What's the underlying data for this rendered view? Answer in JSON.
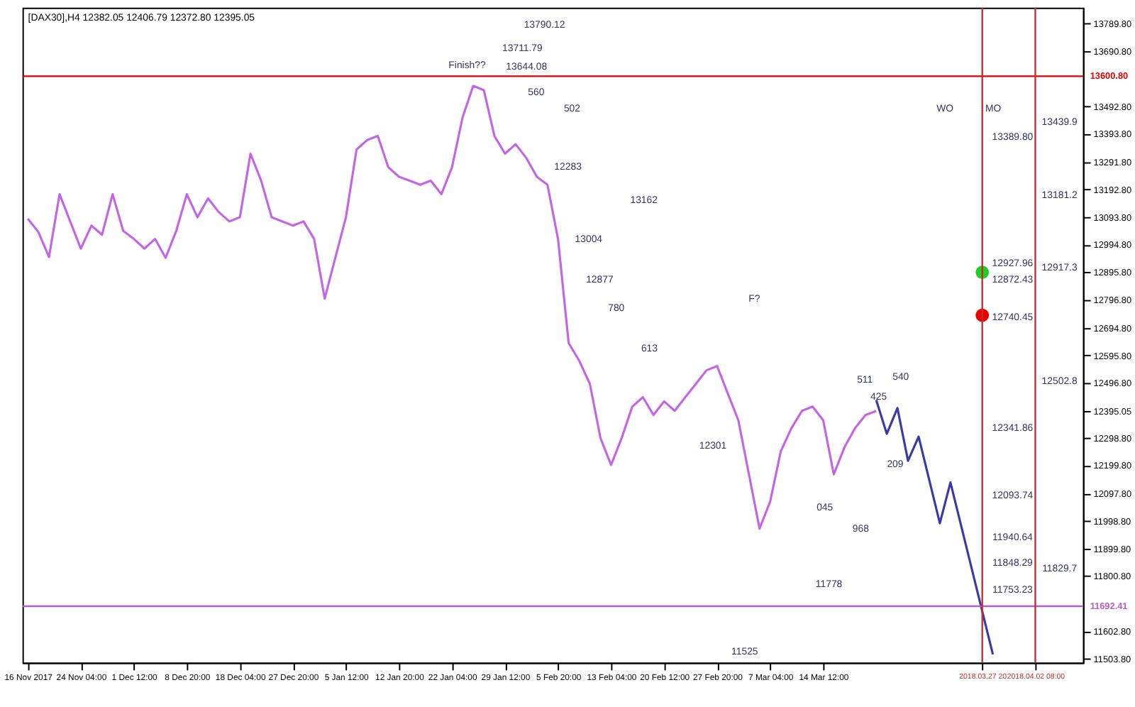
{
  "chart_data": {
    "type": "line",
    "title": "[DAX30],H4 12382.05 12406.79 12372.80 12395.05",
    "categories": [
      "16 Nov 2017",
      null,
      null,
      null,
      null,
      "24 Nov 04:00",
      null,
      null,
      null,
      null,
      "1 Dec 12:00",
      null,
      null,
      null,
      null,
      "8 Dec 20:00",
      null,
      null,
      null,
      null,
      "18 Dec 04:00",
      null,
      null,
      null,
      null,
      "27 Dec 20:00",
      null,
      null,
      null,
      null,
      "5 Jan 12:00",
      null,
      null,
      null,
      null,
      "12 Jan 20:00",
      null,
      null,
      null,
      null,
      "22 Jan 04:00",
      null,
      null,
      null,
      null,
      "29 Jan 12:00",
      null,
      null,
      null,
      null,
      "5 Feb 20:00",
      null,
      null,
      null,
      null,
      "13 Feb 04:00",
      null,
      null,
      null,
      null,
      "20 Feb 12:00",
      null,
      null,
      null,
      null,
      "27 Feb 20:00",
      null,
      null,
      null,
      null,
      "7 Mar 04:00",
      null,
      null,
      null,
      null,
      "14 Mar 12:00",
      null,
      null,
      null,
      null,
      null,
      null,
      null,
      null,
      null,
      null,
      null,
      null,
      null,
      null,
      "2018.03.27 20",
      null,
      null,
      null,
      null,
      "2018.04.02 08:00",
      null,
      null,
      null,
      null
    ],
    "series": [
      {
        "color": "#c266e6",
        "values": [
          13088,
          13040,
          12950,
          13176,
          13078,
          12980,
          13063,
          13030,
          13176,
          13044,
          13015,
          12980,
          13015,
          12947,
          13044,
          13176,
          13093,
          13161,
          13112,
          13078,
          13093,
          13322,
          13225,
          13093,
          13078,
          13063,
          13078,
          13015,
          12800,
          12947,
          13093,
          13337,
          13371,
          13386,
          13273,
          13239,
          13225,
          13210,
          13225,
          13176,
          13273,
          13453,
          13566,
          13551,
          13386,
          13322,
          13356,
          13307,
          13239,
          13210,
          13015,
          12640,
          12576,
          12493,
          12298,
          12201,
          12298,
          12411,
          12445,
          12381,
          12430,
          12396,
          12445,
          12493,
          12542,
          12557,
          12459,
          12362,
          12167,
          11972,
          12069,
          12250,
          12333,
          12396,
          12411,
          12362,
          12167,
          12264,
          12333,
          12381,
          12395,
          null,
          null,
          null,
          null,
          null,
          null,
          null,
          null,
          null,
          null,
          null,
          null,
          null,
          null,
          null,
          null,
          null,
          null,
          null
        ]
      },
      {
        "color": "#3a3aa8",
        "values": [
          null,
          null,
          null,
          null,
          null,
          null,
          null,
          null,
          null,
          null,
          null,
          null,
          null,
          null,
          null,
          null,
          null,
          null,
          null,
          null,
          null,
          null,
          null,
          null,
          null,
          null,
          null,
          null,
          null,
          null,
          null,
          null,
          null,
          null,
          null,
          null,
          null,
          null,
          null,
          null,
          null,
          null,
          null,
          null,
          null,
          null,
          null,
          null,
          null,
          null,
          null,
          null,
          null,
          null,
          null,
          null,
          null,
          null,
          null,
          null,
          null,
          null,
          null,
          null,
          null,
          null,
          null,
          null,
          null,
          null,
          null,
          null,
          null,
          null,
          null,
          null,
          null,
          null,
          null,
          null,
          12435,
          12313,
          12406,
          12216,
          12303,
          null,
          11991,
          12138,
          null,
          null,
          null,
          11519,
          null,
          null,
          null,
          null,
          null,
          null,
          null,
          null
        ]
      },
      {
        "type": "scatter",
        "color": "#22cc22",
        "values": [
          null,
          null,
          null,
          null,
          null,
          null,
          null,
          null,
          null,
          null,
          null,
          null,
          null,
          null,
          null,
          null,
          null,
          null,
          null,
          null,
          null,
          null,
          null,
          null,
          null,
          null,
          null,
          null,
          null,
          null,
          null,
          null,
          null,
          null,
          null,
          null,
          null,
          null,
          null,
          null,
          null,
          null,
          null,
          null,
          null,
          null,
          null,
          null,
          null,
          null,
          null,
          null,
          null,
          null,
          null,
          null,
          null,
          null,
          null,
          null,
          null,
          null,
          null,
          null,
          null,
          null,
          null,
          null,
          null,
          null,
          null,
          null,
          null,
          null,
          null,
          null,
          null,
          null,
          null,
          null,
          null,
          null,
          null,
          null,
          null,
          null,
          null,
          null,
          null,
          null,
          12895,
          null,
          null,
          null,
          null,
          null,
          null,
          null,
          null,
          null
        ]
      },
      {
        "type": "scatter",
        "color": "#ee0000",
        "values": [
          null,
          null,
          null,
          null,
          null,
          null,
          null,
          null,
          null,
          null,
          null,
          null,
          null,
          null,
          null,
          null,
          null,
          null,
          null,
          null,
          null,
          null,
          null,
          null,
          null,
          null,
          null,
          null,
          null,
          null,
          null,
          null,
          null,
          null,
          null,
          null,
          null,
          null,
          null,
          null,
          null,
          null,
          null,
          null,
          null,
          null,
          null,
          null,
          null,
          null,
          null,
          null,
          null,
          null,
          null,
          null,
          null,
          null,
          null,
          null,
          null,
          null,
          null,
          null,
          null,
          null,
          null,
          null,
          null,
          null,
          null,
          null,
          null,
          null,
          null,
          null,
          null,
          null,
          null,
          null,
          null,
          null,
          null,
          null,
          null,
          null,
          null,
          null,
          null,
          null,
          12740,
          null,
          null,
          null,
          null,
          null,
          null,
          null,
          null,
          null
        ]
      }
    ],
    "ylim": [
      11489,
      13848
    ],
    "yticks": [
      {
        "value": 13789.8,
        "label": "13789.80"
      },
      {
        "value": 13690.8,
        "label": "13690.80"
      },
      {
        "value": 13492.8,
        "label": "13492.80"
      },
      {
        "value": 13393.8,
        "label": "13393.80"
      },
      {
        "value": 13291.8,
        "label": "13291.80"
      },
      {
        "value": 13192.8,
        "label": "13192.80"
      },
      {
        "value": 13093.8,
        "label": "13093.80"
      },
      {
        "value": 12994.8,
        "label": "12994.80"
      },
      {
        "value": 12895.8,
        "label": "12895.80"
      },
      {
        "value": 12796.8,
        "label": "12796.80"
      },
      {
        "value": 12694.8,
        "label": "12694.80"
      },
      {
        "value": 12595.8,
        "label": "12595.80"
      },
      {
        "value": 12496.8,
        "label": "12496.80"
      },
      12395.05,
      {
        "value": 12298.8,
        "label": "12298.80"
      },
      {
        "value": 12199.8,
        "label": "12199.80"
      },
      {
        "value": 12097.8,
        "label": "12097.80"
      },
      {
        "value": 11998.8,
        "label": "11998.80"
      },
      {
        "value": 11899.8,
        "label": "11899.80"
      },
      {
        "value": 11800.8,
        "label": "11800.80"
      },
      {
        "value": 11602.8,
        "label": "11602.80"
      },
      {
        "value": 11503.8,
        "label": "11503.80"
      }
    ],
    "ref_lines": [
      {
        "axis": "y",
        "value": 13600.8,
        "label": "13600.80",
        "color": "#e00000"
      },
      {
        "axis": "y",
        "value": 11692.41,
        "label": "11692.41",
        "color": "#b060c8"
      },
      {
        "axis": "x",
        "value": "2018.03.27 20",
        "color": "#c03030"
      },
      {
        "axis": "x",
        "value": "2018.04.02 08:00",
        "color": "#c03030"
      }
    ],
    "annotations": [
      "Finish??",
      "560",
      "502",
      "12283",
      "13162",
      "13004",
      "12877",
      "780",
      "F?",
      "613",
      "511",
      "540",
      "425",
      "12301",
      "209",
      "045",
      "968",
      "11778",
      "11525",
      "WO",
      "MO",
      "13790.12",
      "13711.79",
      "13644.08",
      "13389.80",
      "12927.96",
      "12872.43",
      "12740.45",
      "12341.86",
      "12093.74",
      "11940.64",
      "11848.29",
      "11753.23",
      "13439.9",
      "13181.2",
      "12917.3",
      "12502.8",
      "11829.7"
    ],
    "grid": false,
    "line_style": "solid"
  }
}
